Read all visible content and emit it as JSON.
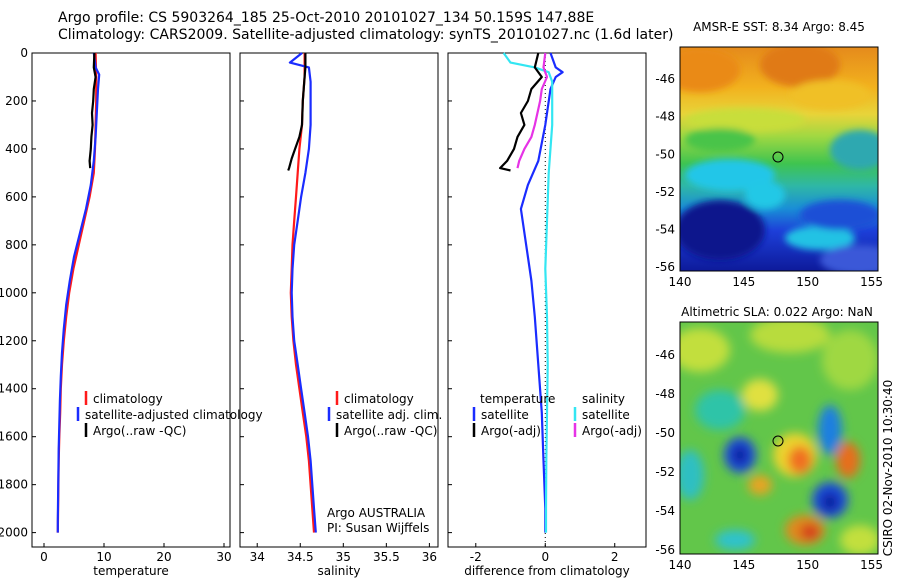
{
  "header": {
    "line1": "Argo profile: CS 5903264_185 25-Oct-2010 20101027_134 50.159S 147.88E",
    "line2": "Climatology: CARS2009. Satellite-adjusted climatology: synTS_20101027.nc (1.6d later)"
  },
  "colors": {
    "climatology": "#ff1a1a",
    "satellite": "#1a2cff",
    "argo": "#000000",
    "sal_satellite": "#33e6f2",
    "sal_argo": "#e633e6"
  },
  "chart_data": [
    {
      "type": "line",
      "name": "temperature-profile",
      "xlabel": "temperature",
      "ylabel": "",
      "xlim": [
        -2,
        31
      ],
      "ylim": [
        2060,
        0
      ],
      "xticks": [
        0,
        10,
        20,
        30
      ],
      "yticks": [
        0,
        200,
        400,
        600,
        800,
        1000,
        1200,
        1400,
        1600,
        1800,
        2000
      ],
      "legend": [
        "climatology",
        "satellite-adjusted climatology",
        "Argo(..raw -QC)"
      ],
      "series": [
        {
          "name": "climatology",
          "color": "climatology",
          "points": [
            [
              8.6,
              0
            ],
            [
              8.7,
              100
            ],
            [
              8.7,
              200
            ],
            [
              8.6,
              300
            ],
            [
              8.5,
              400
            ],
            [
              8.3,
              500
            ],
            [
              7.6,
              600
            ],
            [
              6.7,
              700
            ],
            [
              5.8,
              800
            ],
            [
              4.9,
              900
            ],
            [
              4.2,
              1000
            ],
            [
              3.7,
              1100
            ],
            [
              3.3,
              1200
            ],
            [
              3.0,
              1300
            ],
            [
              2.8,
              1400
            ],
            [
              2.7,
              1500
            ],
            [
              2.55,
              1600
            ],
            [
              2.45,
              1700
            ],
            [
              2.4,
              1800
            ],
            [
              2.35,
              1900
            ],
            [
              2.3,
              2000
            ]
          ]
        },
        {
          "name": "satellite-adjusted climatology",
          "color": "satellite",
          "points": [
            [
              8.3,
              0
            ],
            [
              8.6,
              60
            ],
            [
              9.2,
              90
            ],
            [
              9.0,
              150
            ],
            [
              8.8,
              250
            ],
            [
              8.6,
              350
            ],
            [
              8.3,
              450
            ],
            [
              7.8,
              550
            ],
            [
              7.0,
              650
            ],
            [
              6.0,
              750
            ],
            [
              5.0,
              850
            ],
            [
              4.3,
              950
            ],
            [
              3.7,
              1050
            ],
            [
              3.3,
              1150
            ],
            [
              3.0,
              1250
            ],
            [
              2.8,
              1350
            ],
            [
              2.65,
              1450
            ],
            [
              2.55,
              1550
            ],
            [
              2.45,
              1650
            ],
            [
              2.4,
              1750
            ],
            [
              2.35,
              1850
            ],
            [
              2.3,
              1950
            ],
            [
              2.3,
              2000
            ]
          ]
        },
        {
          "name": "Argo(..raw -QC)",
          "color": "argo",
          "points": [
            [
              8.4,
              0
            ],
            [
              8.3,
              60
            ],
            [
              8.6,
              100
            ],
            [
              8.3,
              150
            ],
            [
              8.2,
              200
            ],
            [
              8.0,
              250
            ],
            [
              8.1,
              300
            ],
            [
              7.9,
              350
            ],
            [
              7.8,
              400
            ],
            [
              7.6,
              450
            ],
            [
              7.7,
              480
            ]
          ]
        }
      ]
    },
    {
      "type": "line",
      "name": "salinity-profile",
      "xlabel": "salinity",
      "ylabel": "",
      "xlim": [
        33.8,
        36.1
      ],
      "ylim": [
        2060,
        0
      ],
      "xticks": [
        34,
        34.5,
        35,
        35.5,
        36
      ],
      "legend": [
        "climatology",
        "satellite adj. clim.",
        "Argo(..raw -QC)"
      ],
      "annotation": [
        "Argo AUSTRALIA",
        "PI: Susan Wijffels"
      ],
      "series": [
        {
          "name": "climatology",
          "color": "climatology",
          "points": [
            [
              34.55,
              0
            ],
            [
              34.55,
              100
            ],
            [
              34.53,
              200
            ],
            [
              34.52,
              300
            ],
            [
              34.49,
              400
            ],
            [
              34.47,
              500
            ],
            [
              34.45,
              600
            ],
            [
              34.43,
              700
            ],
            [
              34.41,
              800
            ],
            [
              34.4,
              900
            ],
            [
              34.39,
              1000
            ],
            [
              34.4,
              1100
            ],
            [
              34.42,
              1200
            ],
            [
              34.45,
              1300
            ],
            [
              34.49,
              1400
            ],
            [
              34.53,
              1500
            ],
            [
              34.57,
              1600
            ],
            [
              34.6,
              1700
            ],
            [
              34.62,
              1800
            ],
            [
              34.64,
              1900
            ],
            [
              34.66,
              2000
            ]
          ]
        },
        {
          "name": "satellite adj. clim.",
          "color": "satellite",
          "points": [
            [
              34.52,
              0
            ],
            [
              34.38,
              40
            ],
            [
              34.6,
              60
            ],
            [
              34.62,
              120
            ],
            [
              34.62,
              200
            ],
            [
              34.62,
              300
            ],
            [
              34.6,
              400
            ],
            [
              34.56,
              500
            ],
            [
              34.51,
              600
            ],
            [
              34.47,
              700
            ],
            [
              34.43,
              800
            ],
            [
              34.41,
              900
            ],
            [
              34.4,
              1000
            ],
            [
              34.41,
              1100
            ],
            [
              34.43,
              1200
            ],
            [
              34.47,
              1300
            ],
            [
              34.51,
              1400
            ],
            [
              34.55,
              1500
            ],
            [
              34.59,
              1600
            ],
            [
              34.62,
              1700
            ],
            [
              34.64,
              1800
            ],
            [
              34.66,
              1900
            ],
            [
              34.68,
              2000
            ]
          ]
        },
        {
          "name": "Argo(..raw -QC)",
          "color": "argo",
          "points": [
            [
              34.56,
              0
            ],
            [
              34.56,
              60
            ],
            [
              34.55,
              100
            ],
            [
              34.53,
              200
            ],
            [
              34.52,
              300
            ],
            [
              34.49,
              350
            ],
            [
              34.44,
              400
            ],
            [
              34.4,
              440
            ],
            [
              34.37,
              480
            ],
            [
              34.36,
              490
            ]
          ]
        }
      ]
    },
    {
      "type": "line",
      "name": "difference-profile",
      "xlabel": "difference from climatology",
      "ylabel": "",
      "xlim": [
        -2.8,
        2.9
      ],
      "ylim": [
        2060,
        0
      ],
      "xticks": [
        -2,
        0,
        2
      ],
      "legend": {
        "temperature": {
          "heading": "temperature",
          "items": [
            "satellite",
            "Argo(-adj)"
          ]
        },
        "salinity": {
          "heading": "salinity",
          "items": [
            "satellite",
            "Argo(-adj)"
          ]
        }
      },
      "series": [
        {
          "name": "temperature satellite",
          "color": "satellite",
          "points": [
            [
              0.15,
              0
            ],
            [
              0.3,
              60
            ],
            [
              0.5,
              80
            ],
            [
              0.3,
              100
            ],
            [
              0.15,
              150
            ],
            [
              0.0,
              300
            ],
            [
              -0.2,
              450
            ],
            [
              -0.5,
              550
            ],
            [
              -0.7,
              650
            ],
            [
              -0.6,
              750
            ],
            [
              -0.5,
              850
            ],
            [
              -0.4,
              950
            ],
            [
              -0.3,
              1100
            ],
            [
              -0.2,
              1300
            ],
            [
              -0.1,
              1500
            ],
            [
              -0.05,
              1700
            ],
            [
              0.0,
              1900
            ],
            [
              0.0,
              2000
            ]
          ]
        },
        {
          "name": "salinity satellite",
          "color": "sal_satellite",
          "points": [
            [
              -1.2,
              0
            ],
            [
              -1.0,
              40
            ],
            [
              -0.3,
              60
            ],
            [
              0.1,
              80
            ],
            [
              0.2,
              120
            ],
            [
              0.2,
              300
            ],
            [
              0.1,
              500
            ],
            [
              0.05,
              700
            ],
            [
              0.0,
              900
            ],
            [
              0.05,
              1100
            ],
            [
              0.07,
              1300
            ],
            [
              0.05,
              1500
            ],
            [
              0.03,
              1700
            ],
            [
              0.02,
              1900
            ],
            [
              0.02,
              2000
            ]
          ]
        },
        {
          "name": "temperature Argo(-adj)",
          "color": "argo",
          "points": [
            [
              -0.2,
              0
            ],
            [
              -0.3,
              60
            ],
            [
              -0.1,
              100
            ],
            [
              -0.4,
              150
            ],
            [
              -0.5,
              200
            ],
            [
              -0.7,
              250
            ],
            [
              -0.6,
              300
            ],
            [
              -0.8,
              350
            ],
            [
              -0.9,
              400
            ],
            [
              -1.1,
              450
            ],
            [
              -1.3,
              480
            ],
            [
              -1.0,
              490
            ]
          ]
        },
        {
          "name": "salinity Argo(-adj)",
          "color": "sal_argo",
          "points": [
            [
              0.0,
              0
            ],
            [
              -0.05,
              60
            ],
            [
              0.05,
              100
            ],
            [
              -0.1,
              150
            ],
            [
              -0.15,
              200
            ],
            [
              -0.3,
              300
            ],
            [
              -0.4,
              350
            ],
            [
              -0.6,
              400
            ],
            [
              -0.75,
              450
            ],
            [
              -0.8,
              480
            ]
          ]
        }
      ]
    },
    {
      "type": "heatmap",
      "name": "amsre-sst-map",
      "title": "AMSR-E SST: 8.34 Argo: 8.45",
      "xlim": [
        140,
        155.5
      ],
      "ylim": [
        -56.2,
        -44.3
      ],
      "xticks": [
        140,
        145,
        150,
        155
      ],
      "yticks": [
        -46,
        -48,
        -50,
        -52,
        -54,
        -56
      ],
      "argo_position": [
        147.88,
        -50.159
      ]
    },
    {
      "type": "heatmap",
      "name": "altimetric-sla-map",
      "title": "Altimetric SLA: 0.022 Argo: NaN",
      "xlim": [
        140,
        155.5
      ],
      "ylim": [
        -56.2,
        -44.3
      ],
      "xticks": [
        140,
        145,
        150,
        155
      ],
      "yticks": [
        -46,
        -48,
        -50,
        -52,
        -54,
        -56
      ],
      "argo_position": [
        147.88,
        -50.159
      ]
    }
  ],
  "stamp": "CSIRO 02-Nov-2010 10:30:40"
}
